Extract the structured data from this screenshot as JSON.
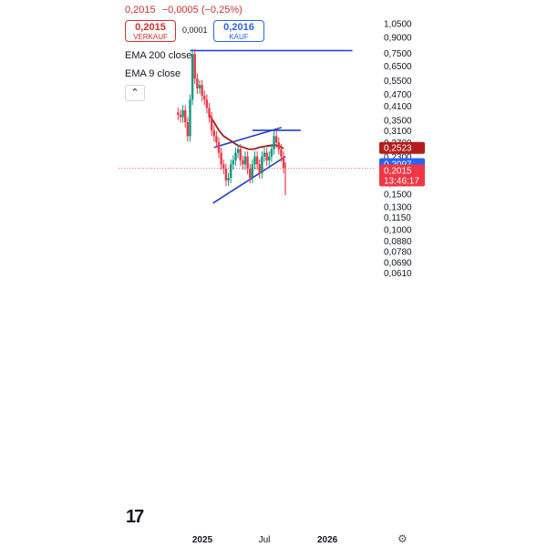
{
  "header": {
    "price": "0,2015",
    "change": "−0,0005 (−0,25%)",
    "sell_price": "0,2015",
    "sell_label": "VERKAUF",
    "spread": "0,0001",
    "buy_price": "0,2016",
    "buy_label": "KAUF"
  },
  "legend": {
    "ema200": "EMA 200 close",
    "ema9": "EMA 9 close",
    "collapse_icon": "chevron-up-icon"
  },
  "colors": {
    "up": "#089981",
    "down": "#f23645",
    "ema200": "#a01c1c",
    "trendline": "#1e3fd0",
    "price_line": "#f23645",
    "blue_label": "#2962ff",
    "dark_red_label": "#b71c1c"
  },
  "chart_data": {
    "type": "candlestick",
    "title": "",
    "x_ticks": [
      "2025",
      "Jul",
      "2026"
    ],
    "y_ticks": [
      "1,0500",
      "0,9000",
      "0,7500",
      "0,6500",
      "0,5500",
      "0,4700",
      "0,4100",
      "0,3500",
      "0,3100",
      "0,2700",
      "0,2300",
      "0,2000",
      "0,1700",
      "0,1500",
      "0,1300",
      "0,1150",
      "0,1000",
      "0,0880",
      "0,0780",
      "0,0690",
      "0,0610"
    ],
    "y_scale": "log",
    "ylim": [
      0.056,
      1.1
    ],
    "price_labels": [
      {
        "value": 0.2523,
        "text": "0,2523",
        "color": "dark_red_label"
      },
      {
        "value": 0.2097,
        "text": "0,2097",
        "color": "blue_label"
      },
      {
        "value": 0.2015,
        "text": "0,2015",
        "sub": "13:46:17",
        "color": "price_line"
      }
    ],
    "close_series": [
      [
        "2024-10-15",
        0.38
      ],
      [
        "2024-10-22",
        0.37
      ],
      [
        "2024-10-29",
        0.36
      ],
      [
        "2024-11-05",
        0.39
      ],
      [
        "2024-11-12",
        0.34
      ],
      [
        "2024-11-19",
        0.29
      ],
      [
        "2024-11-26",
        0.44
      ],
      [
        "2024-12-03",
        0.74
      ],
      [
        "2024-12-10",
        0.56
      ],
      [
        "2024-12-17",
        0.5
      ],
      [
        "2024-12-24",
        0.52
      ],
      [
        "2024-12-31",
        0.46
      ],
      [
        "2025-01-07",
        0.44
      ],
      [
        "2025-01-14",
        0.4
      ],
      [
        "2025-01-21",
        0.36
      ],
      [
        "2025-01-28",
        0.31
      ],
      [
        "2025-02-04",
        0.29
      ],
      [
        "2025-02-11",
        0.27
      ],
      [
        "2025-02-18",
        0.24
      ],
      [
        "2025-02-25",
        0.21
      ],
      [
        "2025-03-04",
        0.2
      ],
      [
        "2025-03-11",
        0.175
      ],
      [
        "2025-03-18",
        0.18
      ],
      [
        "2025-03-25",
        0.21
      ],
      [
        "2025-04-01",
        0.22
      ],
      [
        "2025-04-08",
        0.24
      ],
      [
        "2025-04-15",
        0.25
      ],
      [
        "2025-04-22",
        0.22
      ],
      [
        "2025-04-29",
        0.21
      ],
      [
        "2025-05-06",
        0.23
      ],
      [
        "2025-05-13",
        0.2
      ],
      [
        "2025-05-20",
        0.18
      ],
      [
        "2025-05-27",
        0.21
      ],
      [
        "2025-06-03",
        0.23
      ],
      [
        "2025-06-10",
        0.21
      ],
      [
        "2025-06-17",
        0.19
      ],
      [
        "2025-06-24",
        0.23
      ],
      [
        "2025-07-01",
        0.24
      ],
      [
        "2025-07-08",
        0.22
      ],
      [
        "2025-07-15",
        0.23
      ],
      [
        "2025-07-22",
        0.25
      ],
      [
        "2025-07-29",
        0.29
      ],
      [
        "2025-08-05",
        0.27
      ],
      [
        "2025-08-12",
        0.25
      ],
      [
        "2025-08-19",
        0.23
      ],
      [
        "2025-08-26",
        0.2015
      ]
    ],
    "ema200_series": [
      [
        "2025-01-21",
        0.37
      ],
      [
        "2025-02-04",
        0.34
      ],
      [
        "2025-02-18",
        0.31
      ],
      [
        "2025-03-04",
        0.29
      ],
      [
        "2025-03-18",
        0.28
      ],
      [
        "2025-04-01",
        0.27
      ],
      [
        "2025-04-15",
        0.26
      ],
      [
        "2025-05-01",
        0.255
      ],
      [
        "2025-05-15",
        0.25
      ],
      [
        "2025-06-01",
        0.25
      ],
      [
        "2025-06-15",
        0.255
      ],
      [
        "2025-07-01",
        0.258
      ],
      [
        "2025-07-15",
        0.26
      ],
      [
        "2025-08-01",
        0.262
      ],
      [
        "2025-08-15",
        0.258
      ],
      [
        "2025-08-26",
        0.2523
      ]
    ],
    "trendlines": [
      {
        "from": [
          "2024-11-26",
          0.77
        ],
        "to": [
          "2026-03-15",
          0.77
        ]
      },
      {
        "from": [
          "2025-02-04",
          0.255
        ],
        "to": [
          "2025-08-20",
          0.32
        ]
      },
      {
        "from": [
          "2025-05-27",
          0.31
        ],
        "to": [
          "2025-10-15",
          0.31
        ]
      },
      {
        "from": [
          "2025-02-01",
          0.135
        ],
        "to": [
          "2025-09-01",
          0.23
        ]
      }
    ]
  }
}
